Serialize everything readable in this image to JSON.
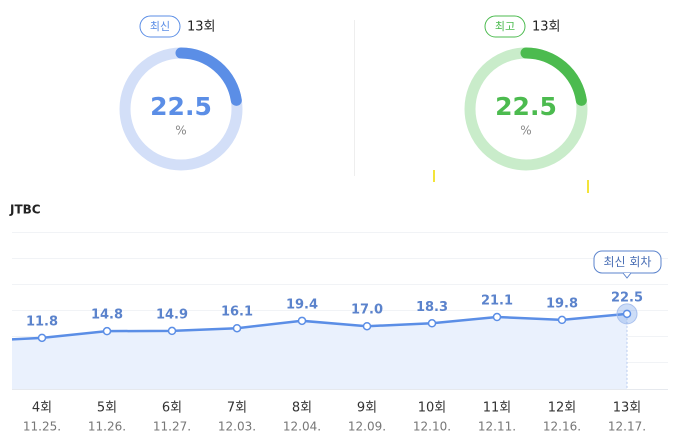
{
  "chart_data": [
    {
      "type": "donut",
      "badge": "최신",
      "episode": "13회",
      "value": 22.5,
      "unit": "%",
      "ylim": [
        0,
        100
      ],
      "color": "#5b8ee6",
      "track_color": "#d3dff8"
    },
    {
      "type": "donut",
      "badge": "최고",
      "episode": "13회",
      "value": 22.5,
      "unit": "%",
      "ylim": [
        0,
        100
      ],
      "color": "#4cbb4f",
      "track_color": "#c9ecca"
    },
    {
      "type": "line",
      "title": "JTBC",
      "categories": [
        null,
        "4회",
        "5회",
        "6회",
        "7회",
        "8회",
        "9회",
        "10회",
        "11회",
        "12회",
        "13회"
      ],
      "dates": [
        null,
        "11.25.",
        "11.26.",
        "11.27.",
        "12.03.",
        "12.04.",
        "12.09.",
        "12.10.",
        "12.11.",
        "12.16.",
        "12.17."
      ],
      "values": [
        10.3,
        11.8,
        14.8,
        14.9,
        16.1,
        19.4,
        17.0,
        18.3,
        21.1,
        19.8,
        22.5
      ],
      "value_labels": [
        null,
        "11.8",
        "14.8",
        "14.9",
        "16.1",
        "19.4",
        "17.0",
        "18.3",
        "21.1",
        "19.8",
        "22.5"
      ],
      "annotation": "최신 회차",
      "color": "#5b8ee6",
      "ylim": [
        -11,
        59
      ]
    }
  ]
}
